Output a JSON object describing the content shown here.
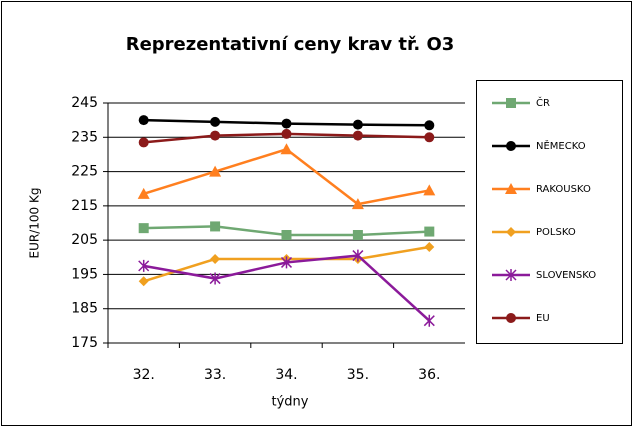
{
  "chart_data": {
    "type": "line",
    "title": "Reprezentativní ceny krav tř. O3",
    "x_label": "týdny",
    "y_label": "EUR/100 Kg",
    "categories": [
      "32.",
      "33.",
      "34.",
      "35.",
      "36."
    ],
    "ylim": [
      175,
      245
    ],
    "yticks": [
      175,
      185,
      195,
      205,
      215,
      225,
      235,
      245
    ],
    "grid": true,
    "legend": "right",
    "series": [
      {
        "name": "ČR",
        "color": "#6fa872",
        "marker": "square",
        "values": [
          208.5,
          209,
          206.5,
          206.5,
          207.5
        ]
      },
      {
        "name": "NĚMECKO",
        "color": "#000000",
        "marker": "circle",
        "values": [
          240,
          239.5,
          239,
          238.7,
          238.5
        ]
      },
      {
        "name": "RAKOUSKO",
        "color": "#ff7f1f",
        "marker": "triangle",
        "values": [
          218.5,
          225,
          231.5,
          215.5,
          219.5
        ]
      },
      {
        "name": "POLSKO",
        "color": "#f0a020",
        "marker": "diamond",
        "values": [
          193,
          199.5,
          199.5,
          199.5,
          203
        ]
      },
      {
        "name": "SLOVENSKO",
        "color": "#8b1a9a",
        "marker": "star",
        "values": [
          197.5,
          193.8,
          198.5,
          200.5,
          181.5
        ]
      },
      {
        "name": "EU",
        "color": "#8b1a1a",
        "marker": "circle",
        "values": [
          233.5,
          235.5,
          236,
          235.5,
          235
        ]
      }
    ]
  }
}
